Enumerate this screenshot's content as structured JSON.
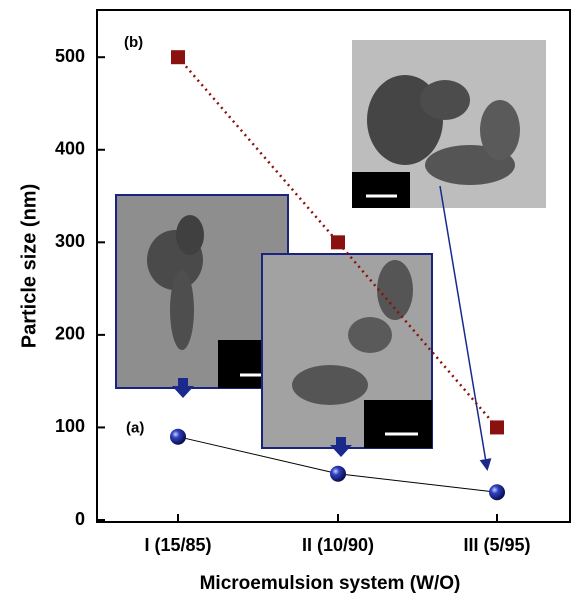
{
  "chart_data": {
    "type": "line",
    "x_label": "Microemulsion system (W/O)",
    "y_label": "Particle size (nm)",
    "categories": [
      "I (15/85)",
      "II (10/90)",
      "III (5/95)"
    ],
    "series": [
      {
        "name": "(b)",
        "color": "#8b1010",
        "marker": "square",
        "line_style": "dotted",
        "values": [
          500,
          300,
          100
        ]
      },
      {
        "name": "(a)",
        "color": "#1a2a8c",
        "marker": "sphere",
        "line_style": "solid",
        "values": [
          90,
          50,
          30
        ]
      }
    ],
    "ylim": [
      0,
      551
    ],
    "yticks": [
      0,
      100,
      200,
      300,
      400,
      500
    ]
  }
}
